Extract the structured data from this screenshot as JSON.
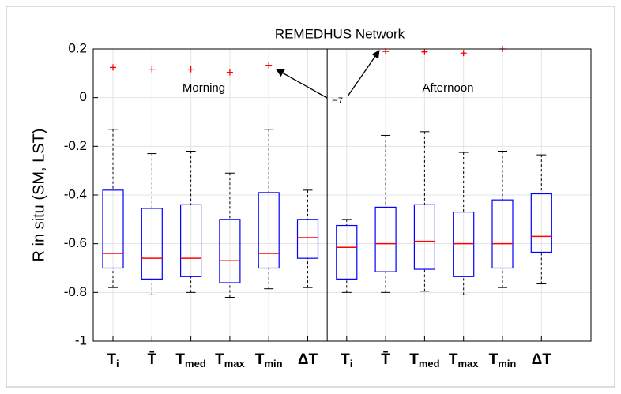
{
  "chart_data": {
    "type": "box",
    "title": "REMEDHUS Network",
    "y_label": "R in situ (SM, LST)",
    "categories": [
      {
        "base": "T",
        "sub": "i"
      },
      {
        "base": "T̄"
      },
      {
        "base": "T",
        "sub": "med"
      },
      {
        "base": "T",
        "sub": "max"
      },
      {
        "base": "T",
        "sub": "min"
      },
      {
        "base": "ΔT"
      },
      {
        "base": "T",
        "sub": "i"
      },
      {
        "base": "T̄"
      },
      {
        "base": "T",
        "sub": "med"
      },
      {
        "base": "T",
        "sub": "max"
      },
      {
        "base": "T",
        "sub": "min"
      },
      {
        "base": "ΔT"
      }
    ],
    "whisker_high": [
      -0.13,
      -0.23,
      -0.22,
      -0.31,
      -0.13,
      -0.38,
      -0.5,
      -0.155,
      -0.14,
      -0.225,
      -0.22,
      -0.235
    ],
    "q3": [
      -0.38,
      -0.455,
      -0.44,
      -0.5,
      -0.39,
      -0.5,
      -0.525,
      -0.45,
      -0.44,
      -0.47,
      -0.42,
      -0.395
    ],
    "median": [
      -0.64,
      -0.66,
      -0.66,
      -0.67,
      -0.64,
      -0.575,
      -0.615,
      -0.6,
      -0.59,
      -0.6,
      -0.6,
      -0.57
    ],
    "q1": [
      -0.7,
      -0.745,
      -0.735,
      -0.76,
      -0.7,
      -0.66,
      -0.745,
      -0.715,
      -0.705,
      -0.735,
      -0.7,
      -0.635
    ],
    "whisker_low": [
      -0.78,
      -0.81,
      -0.8,
      -0.82,
      -0.785,
      -0.78,
      -0.8,
      -0.8,
      -0.795,
      -0.81,
      -0.78,
      -0.765
    ],
    "outliers": [
      [
        0.124
      ],
      [
        0.117
      ],
      [
        0.117
      ],
      [
        0.104
      ],
      [
        0.133
      ],
      [],
      [],
      [
        0.19
      ],
      [
        0.188
      ],
      [
        0.183
      ],
      [
        0.2
      ],
      []
    ],
    "box_color": "#0000ff",
    "median_color": "#ff0000",
    "outlier_color": "#ff0000",
    "ylim": [
      -1,
      0.2
    ],
    "yticks": [
      -1,
      -0.8,
      -0.6,
      -0.4,
      -0.2,
      0,
      0.2
    ],
    "grid": true,
    "annotations": {
      "morning": "Morning",
      "afternoon": "Afternoon",
      "pointer": "H7"
    }
  }
}
